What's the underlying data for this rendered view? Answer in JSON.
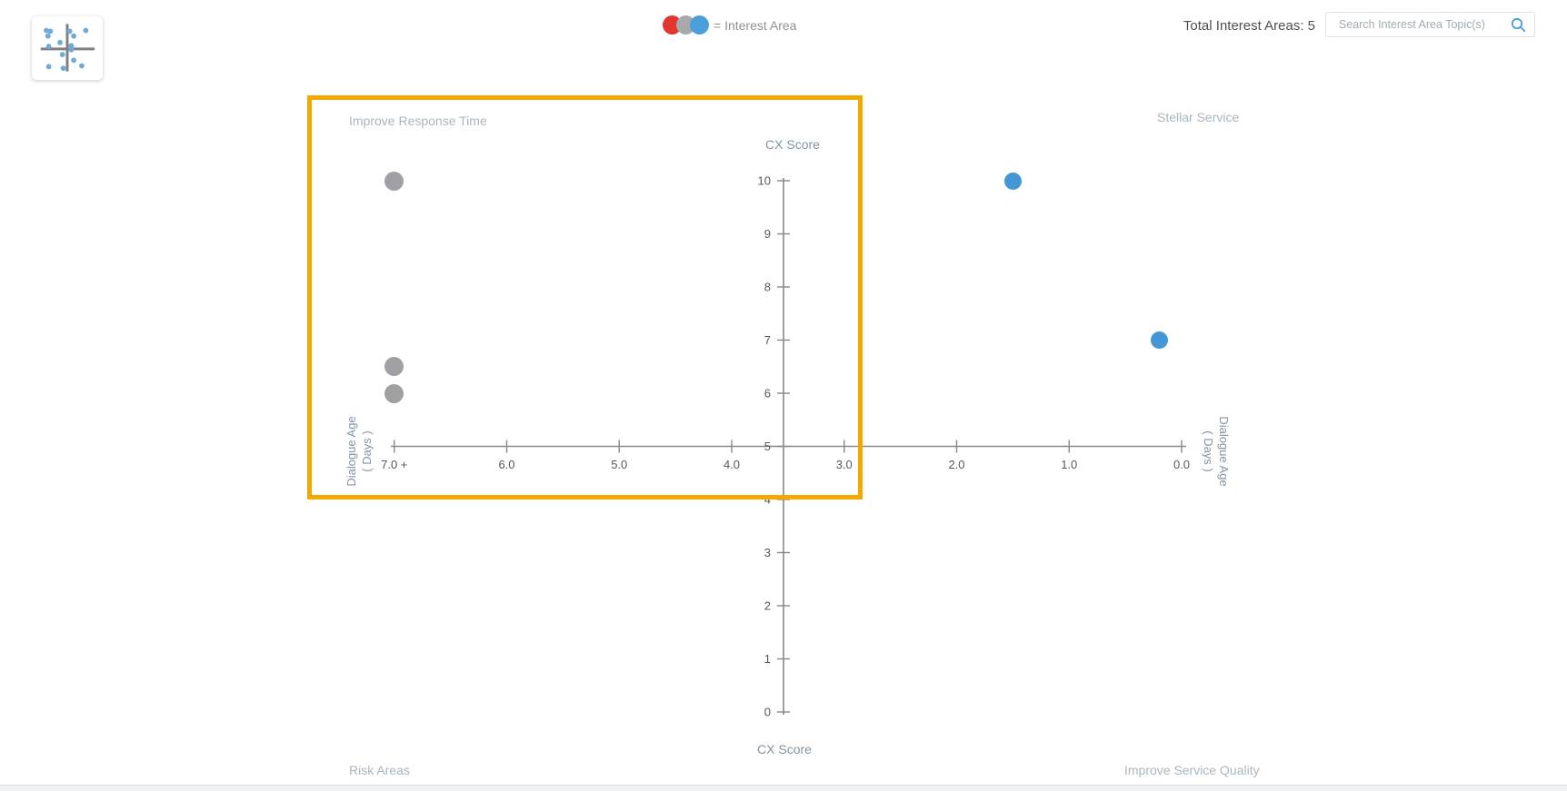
{
  "header": {
    "legend": {
      "label": "= Interest Area",
      "circle_colors": [
        "#e23530",
        "#a7a9ac",
        "#4a9eda"
      ]
    },
    "total_label": "Total Interest Areas: 5",
    "search": {
      "placeholder": "Search Interest Area Topic(s)",
      "icon_color": "#4a9fd9"
    }
  },
  "quadrant_labels": {
    "top_left": "Improve Response Time",
    "top_right": "Stellar Service",
    "bottom_left": "Risk Areas",
    "bottom_right": "Improve Service Quality"
  },
  "chart_data": {
    "type": "scatter",
    "x_axis": {
      "title_line1": "Dialogue Age",
      "title_line2": "( Days )",
      "tick_labels": [
        "7.0 +",
        "6.0",
        "5.0",
        "4.0",
        "3.0",
        "2.0",
        "1.0",
        "0.0"
      ],
      "tick_values": [
        7,
        6,
        5,
        4,
        3,
        2,
        1,
        0
      ],
      "direction": "reversed"
    },
    "y_axis": {
      "title": "CX Score",
      "tick_values": [
        10,
        9,
        8,
        7,
        6,
        5,
        4,
        3,
        2,
        1,
        0
      ],
      "range": [
        0,
        10
      ]
    },
    "series": [
      {
        "name": "gray-interest-areas",
        "color": "#9ea0a3",
        "radius": 10.5,
        "points": [
          {
            "x": 7.0,
            "y": 10
          },
          {
            "x": 7.0,
            "y": 6.5
          },
          {
            "x": 7.0,
            "y": 6.0
          }
        ]
      },
      {
        "name": "blue-interest-areas",
        "color": "#4397d7",
        "radius": 9.5,
        "points": [
          {
            "x": 1.5,
            "y": 10
          },
          {
            "x": 0.2,
            "y": 7.0
          }
        ]
      }
    ],
    "highlight": {
      "quadrant": "top_left",
      "border_color": "#f5a800"
    },
    "axis_color": "#85888c",
    "tick_label_color": "#55585c",
    "grid": false,
    "legend_position": "top-center"
  }
}
